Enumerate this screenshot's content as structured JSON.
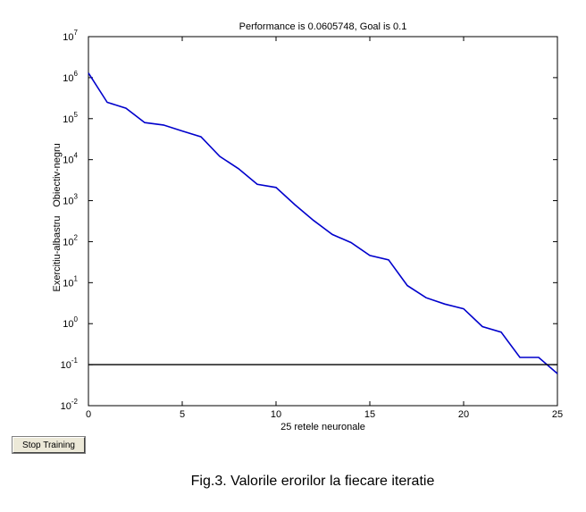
{
  "chart_data": {
    "type": "line",
    "title": "Performance is 0.0605748, Goal is 0.1",
    "xlabel": "25 retele neuronale",
    "ylabel_left": "Exercitiu-albastru",
    "ylabel_right": "Obiectiv-negru",
    "xlim": [
      0,
      25
    ],
    "ylim": [
      0.01,
      10000000
    ],
    "yscale": "log",
    "grid": false,
    "xticks": [
      0,
      5,
      10,
      15,
      20,
      25
    ],
    "yticks": [
      {
        "base": "10",
        "exp": "-2",
        "value": 0.01
      },
      {
        "base": "10",
        "exp": "-1",
        "value": 0.1
      },
      {
        "base": "10",
        "exp": "0",
        "value": 1
      },
      {
        "base": "10",
        "exp": "1",
        "value": 10
      },
      {
        "base": "10",
        "exp": "2",
        "value": 100
      },
      {
        "base": "10",
        "exp": "3",
        "value": 1000
      },
      {
        "base": "10",
        "exp": "4",
        "value": 10000
      },
      {
        "base": "10",
        "exp": "5",
        "value": 100000
      },
      {
        "base": "10",
        "exp": "6",
        "value": 1000000
      },
      {
        "base": "10",
        "exp": "7",
        "value": 10000000
      }
    ],
    "series": [
      {
        "color": "#0000cc",
        "x": [
          0,
          1,
          2,
          3,
          4,
          5,
          6,
          7,
          8,
          9,
          10,
          11,
          12,
          13,
          14,
          15,
          16,
          17,
          18,
          19,
          20,
          21,
          22,
          23,
          24,
          25
        ],
        "y": [
          1300000,
          250000,
          180000,
          80000,
          70000,
          50000,
          36000,
          12000,
          6000,
          2500,
          2100,
          800,
          330,
          150,
          95,
          46,
          36,
          8.5,
          4.3,
          3.0,
          2.3,
          0.85,
          0.62,
          0.15,
          0.15,
          0.0605748
        ]
      },
      {
        "color": "#000000",
        "x": [
          0,
          25
        ],
        "y": [
          0.1,
          0.1
        ]
      }
    ]
  },
  "controls": {
    "stop_label": "Stop Training"
  },
  "caption": "Fig.3. Valorile erorilor la fiecare iteratie"
}
